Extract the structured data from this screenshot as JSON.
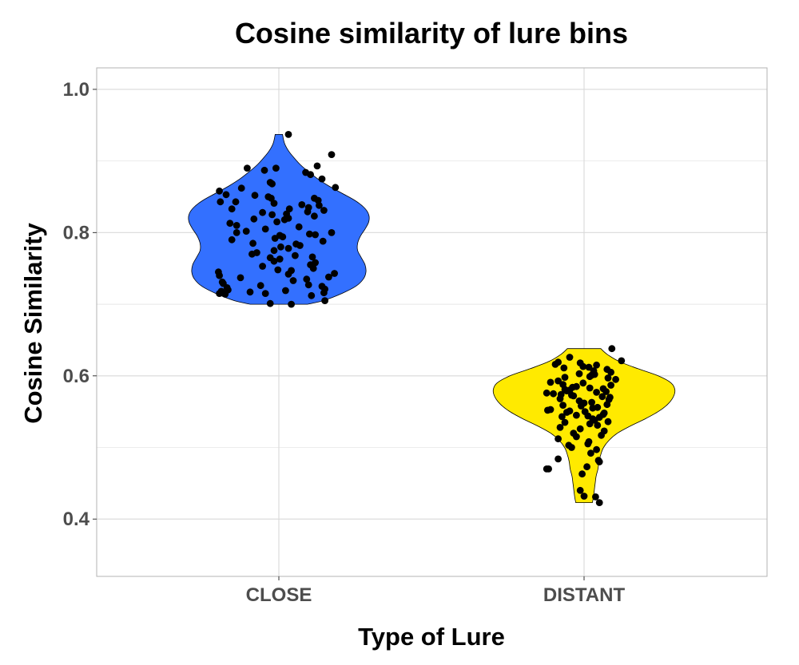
{
  "chart_data": {
    "type": "violin",
    "title": "Cosine similarity of lure bins",
    "xlabel": "Type of Lure",
    "ylabel": "Cosine Similarity",
    "categories": [
      "CLOSE",
      "DISTANT"
    ],
    "ylim": [
      0.32,
      1.03
    ],
    "yticks": [
      0.4,
      0.6,
      0.8,
      1.0
    ],
    "ytick_labels": [
      "0.4",
      "0.6",
      "0.8",
      "1.0"
    ],
    "grid": true,
    "colors": {
      "CLOSE": "#3370ff",
      "DISTANT": "#ffea00",
      "points": "#000000",
      "grid": "#d9d9d9",
      "border": "#b3b3b3"
    },
    "violins": [
      {
        "category": "CLOSE",
        "fill": "#3370ff",
        "profile": [
          [
            0.7,
            0.31
          ],
          [
            0.705,
            0.48
          ],
          [
            0.715,
            0.68
          ],
          [
            0.725,
            0.83
          ],
          [
            0.735,
            0.91
          ],
          [
            0.745,
            0.94
          ],
          [
            0.755,
            0.93
          ],
          [
            0.765,
            0.89
          ],
          [
            0.775,
            0.85
          ],
          [
            0.785,
            0.85
          ],
          [
            0.795,
            0.88
          ],
          [
            0.805,
            0.93
          ],
          [
            0.815,
            0.97
          ],
          [
            0.825,
            0.97
          ],
          [
            0.835,
            0.92
          ],
          [
            0.845,
            0.82
          ],
          [
            0.855,
            0.68
          ],
          [
            0.865,
            0.54
          ],
          [
            0.875,
            0.42
          ],
          [
            0.885,
            0.32
          ],
          [
            0.895,
            0.23
          ],
          [
            0.905,
            0.16
          ],
          [
            0.915,
            0.1
          ],
          [
            0.925,
            0.06
          ],
          [
            0.937,
            0.04
          ]
        ],
        "points": [
          [
            0.937,
            0.1
          ],
          [
            0.909,
            0.55
          ],
          [
            0.893,
            0.4
          ],
          [
            0.89,
            -0.33
          ],
          [
            0.89,
            -0.03
          ],
          [
            0.887,
            -0.15
          ],
          [
            0.884,
            0.28
          ],
          [
            0.881,
            0.33
          ],
          [
            0.875,
            0.45
          ],
          [
            0.87,
            -0.09
          ],
          [
            0.868,
            -0.07
          ],
          [
            0.863,
            0.59
          ],
          [
            0.862,
            -0.39
          ],
          [
            0.858,
            -0.62
          ],
          [
            0.853,
            -0.55
          ],
          [
            0.852,
            -0.25
          ],
          [
            0.85,
            -0.11
          ],
          [
            0.848,
            0.37
          ],
          [
            0.848,
            -0.08
          ],
          [
            0.845,
            0.41
          ],
          [
            0.843,
            -0.61
          ],
          [
            0.843,
            -0.45
          ],
          [
            0.841,
            -0.05
          ],
          [
            0.839,
            0.24
          ],
          [
            0.838,
            0.42
          ],
          [
            0.835,
            0.31
          ],
          [
            0.833,
            0.11
          ],
          [
            0.833,
            -0.49
          ],
          [
            0.831,
            0.47
          ],
          [
            0.829,
            0.3
          ],
          [
            0.828,
            -0.17
          ],
          [
            0.826,
            0.08
          ],
          [
            0.825,
            -0.07
          ],
          [
            0.823,
            0.37
          ],
          [
            0.82,
            0.1
          ],
          [
            0.819,
            -0.26
          ],
          [
            0.818,
            0.06
          ],
          [
            0.815,
            -0.02
          ],
          [
            0.813,
            -0.51
          ],
          [
            0.81,
            -0.44
          ],
          [
            0.808,
            0.21
          ],
          [
            0.805,
            -0.14
          ],
          [
            0.802,
            -0.34
          ],
          [
            0.8,
            -0.44
          ],
          [
            0.8,
            0.55
          ],
          [
            0.798,
            0.32
          ],
          [
            0.797,
            0.38
          ],
          [
            0.796,
            0.01
          ],
          [
            0.794,
            0.04
          ],
          [
            0.792,
            -0.04
          ],
          [
            0.79,
            -0.49
          ],
          [
            0.788,
            0.46
          ],
          [
            0.785,
            -0.27
          ],
          [
            0.784,
            0.18
          ],
          [
            0.782,
            0.22
          ],
          [
            0.78,
            0.02
          ],
          [
            0.778,
            0.1
          ],
          [
            0.775,
            -0.05
          ],
          [
            0.772,
            -0.23
          ],
          [
            0.77,
            -0.28
          ],
          [
            0.768,
            0.17
          ],
          [
            0.766,
            0.35
          ],
          [
            0.765,
            -0.09
          ],
          [
            0.763,
            0.01
          ],
          [
            0.76,
            -0.05
          ],
          [
            0.758,
            0.38
          ],
          [
            0.755,
            0.33
          ],
          [
            0.753,
            -0.17
          ],
          [
            0.75,
            0.36
          ],
          [
            0.748,
            -0.01
          ],
          [
            0.747,
            0.13
          ],
          [
            0.745,
            -0.63
          ],
          [
            0.743,
            0.58
          ],
          [
            0.742,
            0.1
          ],
          [
            0.74,
            -0.62
          ],
          [
            0.738,
            0.52
          ],
          [
            0.737,
            -0.4
          ],
          [
            0.735,
            0.29
          ],
          [
            0.733,
            0.15
          ],
          [
            0.731,
            -0.59
          ],
          [
            0.729,
            -0.58
          ],
          [
            0.727,
            0.31
          ],
          [
            0.726,
            -0.19
          ],
          [
            0.725,
            0.45
          ],
          [
            0.723,
            -0.54
          ],
          [
            0.721,
            0.48
          ],
          [
            0.72,
            -0.53
          ],
          [
            0.719,
            0.07
          ],
          [
            0.718,
            -0.6
          ],
          [
            0.717,
            -0.3
          ],
          [
            0.716,
            0.47
          ],
          [
            0.715,
            -0.62
          ],
          [
            0.715,
            -0.14
          ],
          [
            0.714,
            -0.56
          ],
          [
            0.712,
            0.34
          ],
          [
            0.705,
            0.48
          ],
          [
            0.701,
            -0.09
          ],
          [
            0.7,
            0.13
          ]
        ]
      },
      {
        "category": "DISTANT",
        "fill": "#ffea00",
        "profile": [
          [
            0.423,
            0.09
          ],
          [
            0.43,
            0.1
          ],
          [
            0.44,
            0.11
          ],
          [
            0.45,
            0.12
          ],
          [
            0.46,
            0.13
          ],
          [
            0.47,
            0.15
          ],
          [
            0.48,
            0.16
          ],
          [
            0.49,
            0.18
          ],
          [
            0.5,
            0.21
          ],
          [
            0.51,
            0.27
          ],
          [
            0.52,
            0.36
          ],
          [
            0.53,
            0.5
          ],
          [
            0.54,
            0.66
          ],
          [
            0.55,
            0.8
          ],
          [
            0.56,
            0.9
          ],
          [
            0.57,
            0.96
          ],
          [
            0.58,
            0.98
          ],
          [
            0.59,
            0.94
          ],
          [
            0.6,
            0.8
          ],
          [
            0.61,
            0.58
          ],
          [
            0.62,
            0.38
          ],
          [
            0.63,
            0.25
          ],
          [
            0.638,
            0.18
          ]
        ],
        "points": [
          [
            0.638,
            0.29
          ],
          [
            0.626,
            -0.15
          ],
          [
            0.621,
            0.39
          ],
          [
            0.619,
            -0.27
          ],
          [
            0.618,
            -0.04
          ],
          [
            0.616,
            -0.3
          ],
          [
            0.615,
            0.13
          ],
          [
            0.613,
            -0.01
          ],
          [
            0.612,
            0.05
          ],
          [
            0.611,
            -0.21
          ],
          [
            0.609,
            0.24
          ],
          [
            0.607,
            0.1
          ],
          [
            0.605,
            0.28
          ],
          [
            0.603,
            -0.05
          ],
          [
            0.602,
            0.11
          ],
          [
            0.601,
            0.08
          ],
          [
            0.599,
            0.06
          ],
          [
            0.598,
            -0.2
          ],
          [
            0.597,
            0.25
          ],
          [
            0.595,
            0.33
          ],
          [
            0.593,
            -0.27
          ],
          [
            0.591,
            -0.35
          ],
          [
            0.59,
            -0.01
          ],
          [
            0.588,
            -0.22
          ],
          [
            0.587,
            0.28
          ],
          [
            0.585,
            -0.08
          ],
          [
            0.584,
            -0.12
          ],
          [
            0.583,
            0.06
          ],
          [
            0.582,
            0.2
          ],
          [
            0.581,
            -0.2
          ],
          [
            0.58,
            -0.15
          ],
          [
            0.579,
            -0.18
          ],
          [
            0.578,
            0.23
          ],
          [
            0.577,
            0.13
          ],
          [
            0.576,
            -0.39
          ],
          [
            0.575,
            -0.32
          ],
          [
            0.574,
            -0.24
          ],
          [
            0.573,
            -0.13
          ],
          [
            0.572,
            -0.11
          ],
          [
            0.571,
            0.19
          ],
          [
            0.57,
            0.27
          ],
          [
            0.568,
            -0.25
          ],
          [
            0.567,
            0.26
          ],
          [
            0.565,
            -0.05
          ],
          [
            0.563,
            0.08
          ],
          [
            0.562,
            0.0
          ],
          [
            0.56,
            0.24
          ],
          [
            0.559,
            -0.22
          ],
          [
            0.558,
            -0.03
          ],
          [
            0.556,
            0.14
          ],
          [
            0.555,
            0.09
          ],
          [
            0.553,
            -0.35
          ],
          [
            0.552,
            -0.38
          ],
          [
            0.551,
            -0.15
          ],
          [
            0.55,
            0.01
          ],
          [
            0.549,
            -0.18
          ],
          [
            0.548,
            0.21
          ],
          [
            0.546,
            0.2
          ],
          [
            0.545,
            -0.08
          ],
          [
            0.544,
            0.04
          ],
          [
            0.543,
            -0.23
          ],
          [
            0.542,
            0.16
          ],
          [
            0.54,
            0.09
          ],
          [
            0.538,
            0.11
          ],
          [
            0.536,
            0.25
          ],
          [
            0.535,
            -0.2
          ],
          [
            0.533,
            0.06
          ],
          [
            0.531,
            0.14
          ],
          [
            0.528,
            -0.25
          ],
          [
            0.526,
            -0.04
          ],
          [
            0.523,
            0.21
          ],
          [
            0.52,
            -0.11
          ],
          [
            0.517,
            0.18
          ],
          [
            0.515,
            -0.08
          ],
          [
            0.512,
            -0.27
          ],
          [
            0.508,
            0.05
          ],
          [
            0.505,
            0.04
          ],
          [
            0.503,
            -0.16
          ],
          [
            0.5,
            -0.13
          ],
          [
            0.497,
            0.13
          ],
          [
            0.492,
            0.07
          ],
          [
            0.484,
            -0.27
          ],
          [
            0.482,
            0.15
          ],
          [
            0.48,
            0.16
          ],
          [
            0.473,
            0.03
          ],
          [
            0.47,
            -0.39
          ],
          [
            0.47,
            -0.37
          ],
          [
            0.463,
            -0.02
          ],
          [
            0.44,
            -0.04
          ],
          [
            0.432,
            -0.0
          ],
          [
            0.431,
            0.12
          ],
          [
            0.423,
            0.16
          ]
        ]
      }
    ]
  }
}
